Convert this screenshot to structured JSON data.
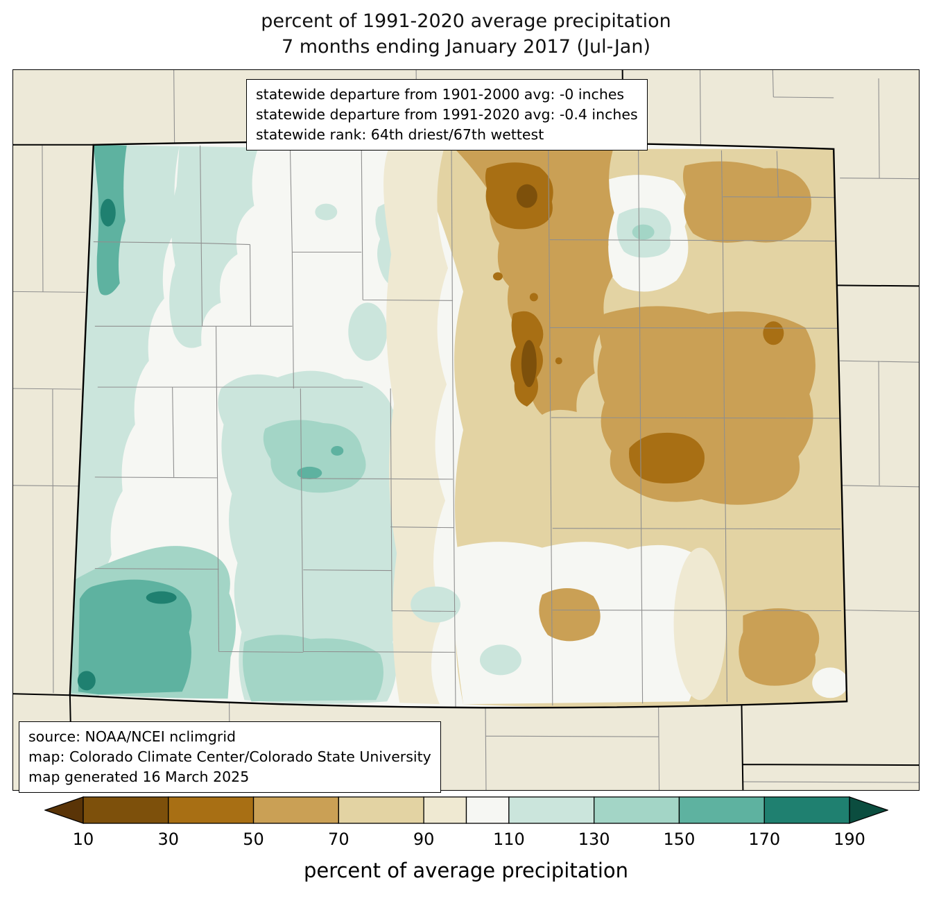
{
  "title": {
    "line1": "percent of 1991-2020 average precipitation",
    "line2": "7 months ending January 2017 (Jul-Jan)"
  },
  "stats_box": {
    "line1": "statewide departure from 1901-2000 avg: -0 inches",
    "line2": "statewide departure from 1991-2020 avg: -0.4 inches",
    "line3": "statewide rank: 64th driest/67th wettest"
  },
  "source_box": {
    "line1": "source: NOAA/NCEI nclimgrid",
    "line2": "map: Colorado Climate Center/Colorado State University",
    "line3": "map generated 16 March 2025"
  },
  "colorbar": {
    "label": "percent of average precipitation",
    "min": 10,
    "max": 190,
    "tick_values": [
      10,
      30,
      50,
      70,
      90,
      110,
      130,
      150,
      170,
      190
    ],
    "segments": [
      {
        "from": 10,
        "to": 30,
        "color": "#7d500b"
      },
      {
        "from": 30,
        "to": 50,
        "color": "#a86f14"
      },
      {
        "from": 50,
        "to": 70,
        "color": "#caa055"
      },
      {
        "from": 70,
        "to": 90,
        "color": "#e3d3a3"
      },
      {
        "from": 90,
        "to": 100,
        "color": "#efe9d2"
      },
      {
        "from": 100,
        "to": 110,
        "color": "#f6f7f3"
      },
      {
        "from": 110,
        "to": 130,
        "color": "#cbe5dc"
      },
      {
        "from": 130,
        "to": 150,
        "color": "#a3d5c6"
      },
      {
        "from": 150,
        "to": 170,
        "color": "#5eb2a0"
      },
      {
        "from": 170,
        "to": 190,
        "color": "#1f8070"
      }
    ],
    "arrow_low_color": "#5a3407",
    "arrow_high_color": "#0b4d3f"
  },
  "palette": {
    "outside_bg": "#ede9d8",
    "state_base": "#f6f7f3",
    "cream": "#efe9d2",
    "tan_light": "#e3d3a3",
    "tan_mid": "#caa055",
    "brown": "#a86f14",
    "brown_dark": "#7d500b",
    "teal_pale": "#cbe5dc",
    "teal": "#a3d5c6",
    "teal_mid": "#5eb2a0",
    "teal_dark": "#1f8070",
    "county_line": "#8f8f8f",
    "state_line": "#000000"
  }
}
